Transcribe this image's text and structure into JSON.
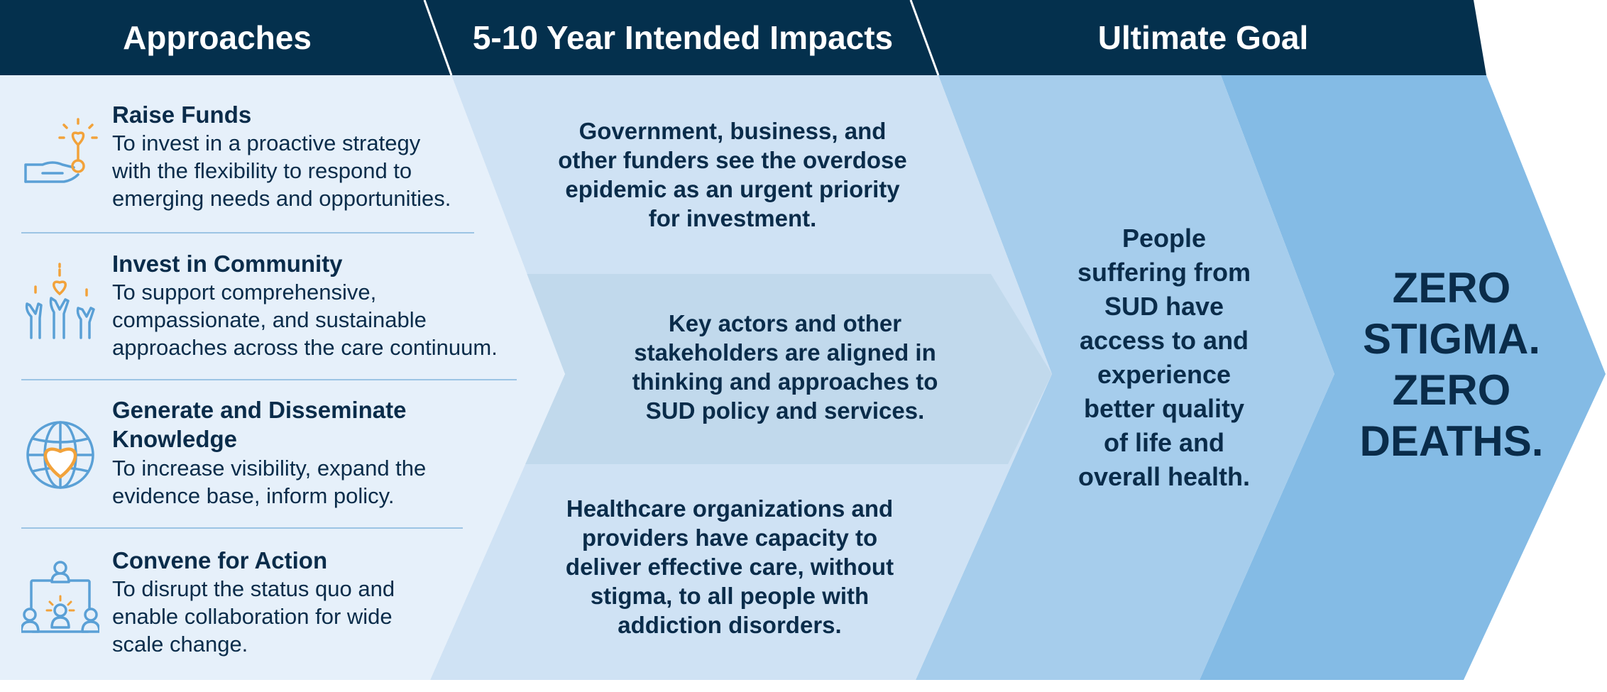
{
  "headers": {
    "approaches": "Approaches",
    "impacts": "5-10 Year Intended Impacts",
    "goal": "Ultimate Goal"
  },
  "approaches": [
    {
      "icon": "hand-holding-heart-icon",
      "title": "Raise Funds",
      "lines": [
        "To invest in a proactive strategy",
        "with the flexibility to respond to",
        "emerging needs and opportunities."
      ]
    },
    {
      "icon": "hands-raising-hearts-icon",
      "title": "Invest in Community",
      "lines": [
        "To support comprehensive,",
        "compassionate, and sustainable",
        "approaches across the care continuum."
      ]
    },
    {
      "icon": "globe-heart-icon",
      "title": "Generate and Disseminate Knowledge",
      "title_lines": [
        "Generate and Disseminate",
        "Knowledge"
      ],
      "lines": [
        "To increase visibility, expand the",
        "evidence base, inform policy."
      ]
    },
    {
      "icon": "people-convening-icon",
      "title": "Convene for Action",
      "lines": [
        "To disrupt the status quo and",
        "enable collaboration for wide",
        "scale change."
      ]
    }
  ],
  "impacts": [
    {
      "text": "Government, business, and other funders see the overdose epidemic as an urgent priority for investment.",
      "lines": [
        "Government, business, and",
        "other funders see the overdose",
        "epidemic as an urgent priority",
        "for investment."
      ]
    },
    {
      "text": "Key actors and other stakeholders are aligned in thinking and approaches to SUD policy and services.",
      "lines": [
        "Key actors and other",
        "stakeholders are aligned in",
        "thinking and approaches to",
        "SUD policy and services."
      ]
    },
    {
      "text": "Healthcare organizations and providers have capacity to deliver effective care, without stigma, to all people with addiction disorders.",
      "lines": [
        "Healthcare organizations and",
        "providers have capacity to",
        "deliver effective care, without",
        "stigma, to all people with",
        "addiction disorders."
      ]
    }
  ],
  "goal": {
    "outcome": "People suffering from SUD have access to and experience better quality of life and overall health.",
    "outcome_lines": [
      "People",
      "suffering from",
      "SUD have",
      "access to and",
      "experience",
      "better quality",
      "of life and",
      "overall health."
    ],
    "ultimate": "ZERO STIGMA. ZERO DEATHS.",
    "ultimate_lines": [
      "ZERO",
      "STIGMA.",
      "ZERO",
      "DEATHS."
    ]
  },
  "colors": {
    "navy": "#04304d",
    "text": "#0a2c4a",
    "col1": "#e6f0fa",
    "col2": "#cfe2f4",
    "col2_band": "#c1d9ec",
    "col3": "#a6cdec",
    "col4": "#84bbe5",
    "orange": "#f2a23a",
    "icon_blue": "#5aa0d6"
  }
}
